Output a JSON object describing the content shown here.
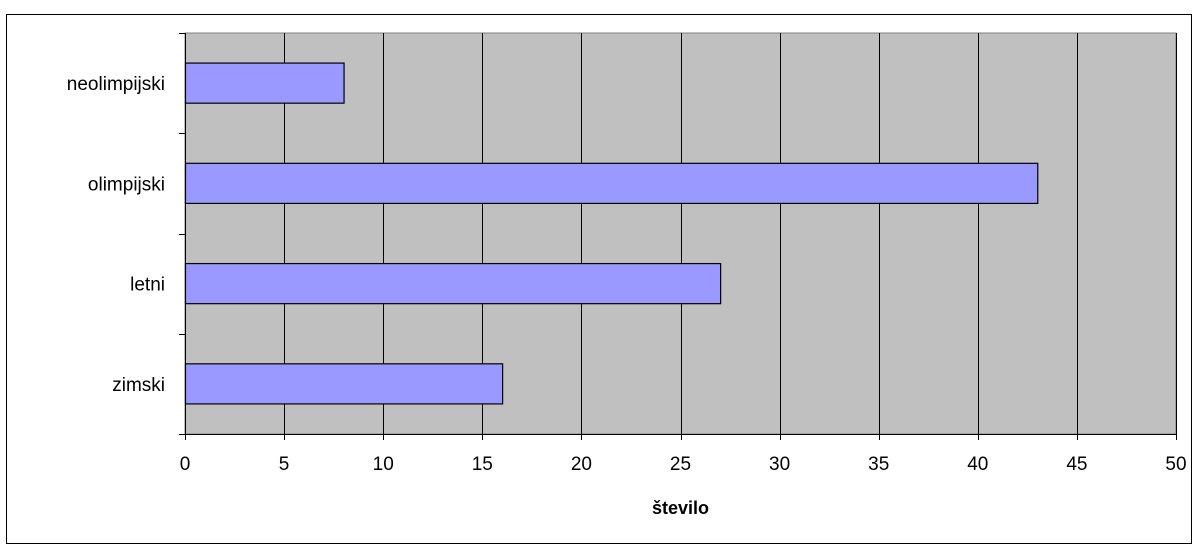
{
  "chart_data": {
    "type": "bar",
    "orientation": "horizontal",
    "title": "",
    "xlabel": "število",
    "ylabel": "",
    "categories": [
      "zimski",
      "letni",
      "olimpijski",
      "neolimpijski"
    ],
    "values": [
      16,
      27,
      43,
      8
    ],
    "xlim": [
      0,
      50
    ],
    "xticks": [
      0,
      5,
      10,
      15,
      20,
      25,
      30,
      35,
      40,
      45,
      50
    ],
    "grid": "vertical",
    "legend": "none",
    "colors": {
      "plot_background": "#c0c0c0",
      "bar_fill": "#9999ff",
      "bar_stroke": "#000000",
      "gridline": "#000000"
    }
  }
}
